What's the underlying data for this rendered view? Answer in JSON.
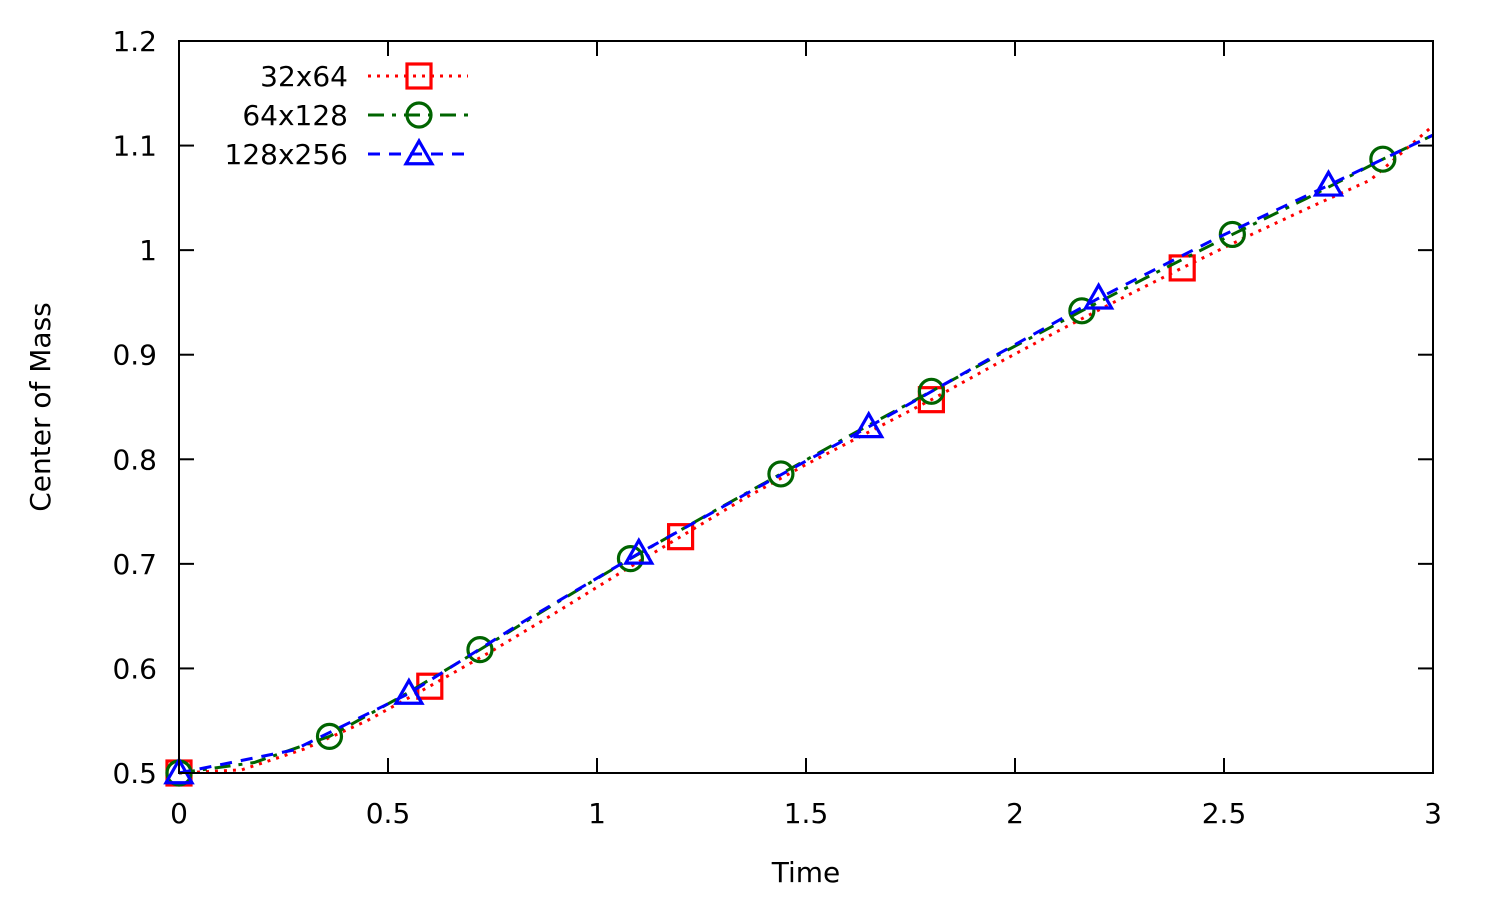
{
  "chart_data": {
    "type": "line",
    "title": "",
    "xlabel": "Time",
    "ylabel": "Center of Mass",
    "xlim": [
      0,
      3
    ],
    "ylim": [
      0.5,
      1.2
    ],
    "xticks": [
      {
        "value": 0,
        "label": "0"
      },
      {
        "value": 0.5,
        "label": "0.5"
      },
      {
        "value": 1,
        "label": "1"
      },
      {
        "value": 1.5,
        "label": "1.5"
      },
      {
        "value": 2,
        "label": "2"
      },
      {
        "value": 2.5,
        "label": "2.5"
      },
      {
        "value": 3,
        "label": "3"
      }
    ],
    "yticks": [
      {
        "value": 0.5,
        "label": "0.5"
      },
      {
        "value": 0.6,
        "label": "0.6"
      },
      {
        "value": 0.7,
        "label": "0.7"
      },
      {
        "value": 0.8,
        "label": "0.8"
      },
      {
        "value": 0.9,
        "label": "0.9"
      },
      {
        "value": 1.0,
        "label": "1"
      },
      {
        "value": 1.1,
        "label": "1.1"
      },
      {
        "value": 1.2,
        "label": "1.2"
      }
    ],
    "grid": false,
    "legend_position": "top-left",
    "series": [
      {
        "name": "32x64",
        "color": "#ff0000",
        "line_style": "dotted",
        "marker": "square",
        "x": [
          0,
          0.15,
          0.3,
          0.45,
          0.6,
          0.75,
          0.9,
          1.05,
          1.2,
          1.35,
          1.5,
          1.65,
          1.8,
          1.95,
          2.1,
          2.25,
          2.4,
          2.55,
          2.7,
          2.85,
          3.0
        ],
        "y": [
          0.5,
          0.503,
          0.523,
          0.55,
          0.583,
          0.617,
          0.653,
          0.69,
          0.726,
          0.762,
          0.795,
          0.826,
          0.857,
          0.89,
          0.922,
          0.953,
          0.983,
          1.012,
          1.04,
          1.067,
          1.119
        ],
        "marker_points": [
          {
            "x": 0,
            "y": 0.5
          },
          {
            "x": 0.6,
            "y": 0.583
          },
          {
            "x": 1.2,
            "y": 0.726
          },
          {
            "x": 1.8,
            "y": 0.857
          },
          {
            "x": 2.4,
            "y": 0.983
          }
        ]
      },
      {
        "name": "64x128",
        "color": "#006400",
        "line_style": "dash-dot",
        "marker": "circle",
        "x": [
          0,
          0.18,
          0.36,
          0.54,
          0.72,
          0.9,
          1.08,
          1.26,
          1.44,
          1.62,
          1.8,
          1.98,
          2.16,
          2.34,
          2.52,
          2.7,
          2.88,
          3.0
        ],
        "y": [
          0.5,
          0.51,
          0.535,
          0.575,
          0.618,
          0.662,
          0.705,
          0.746,
          0.786,
          0.826,
          0.865,
          0.904,
          0.942,
          0.979,
          1.015,
          1.05,
          1.087,
          1.11
        ],
        "marker_points": [
          {
            "x": 0,
            "y": 0.5
          },
          {
            "x": 0.36,
            "y": 0.535
          },
          {
            "x": 0.72,
            "y": 0.618
          },
          {
            "x": 1.08,
            "y": 0.705
          },
          {
            "x": 1.44,
            "y": 0.786
          },
          {
            "x": 1.8,
            "y": 0.865
          },
          {
            "x": 2.16,
            "y": 0.942
          },
          {
            "x": 2.52,
            "y": 1.015
          },
          {
            "x": 2.88,
            "y": 1.087
          }
        ]
      },
      {
        "name": "128x256",
        "color": "#0000ff",
        "line_style": "dashed",
        "marker": "triangle",
        "x": [
          0,
          0.275,
          0.55,
          0.825,
          1.1,
          1.375,
          1.65,
          1.925,
          2.2,
          2.475,
          2.75,
          3.0
        ],
        "y": [
          0.5,
          0.522,
          0.576,
          0.645,
          0.71,
          0.771,
          0.831,
          0.893,
          0.954,
          1.01,
          1.062,
          1.11
        ],
        "marker_points": [
          {
            "x": 0,
            "y": 0.5
          },
          {
            "x": 0.55,
            "y": 0.576
          },
          {
            "x": 1.1,
            "y": 0.71
          },
          {
            "x": 1.65,
            "y": 0.831
          },
          {
            "x": 2.2,
            "y": 0.954
          },
          {
            "x": 2.75,
            "y": 1.062
          }
        ]
      }
    ]
  }
}
